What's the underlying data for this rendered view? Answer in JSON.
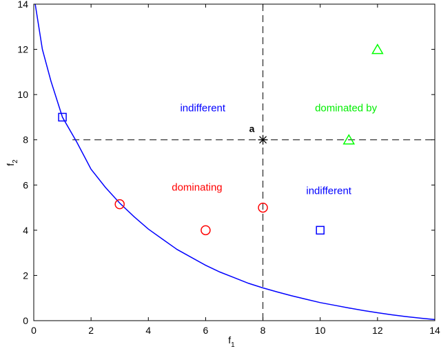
{
  "chart_data": {
    "type": "scatter",
    "xlabel": {
      "main": "f",
      "sub": "1"
    },
    "ylabel": {
      "main": "f",
      "sub": "2"
    },
    "xlim": [
      0,
      14
    ],
    "ylim": [
      0,
      14
    ],
    "xticks": [
      0,
      2,
      4,
      6,
      8,
      10,
      12,
      14
    ],
    "yticks": [
      0,
      2,
      4,
      6,
      8,
      10,
      12,
      14
    ],
    "grid": false,
    "curve": {
      "color": "#0000ff",
      "points": [
        [
          0.05,
          14
        ],
        [
          0.3,
          12.0
        ],
        [
          0.6,
          10.6
        ],
        [
          1.0,
          9.0
        ],
        [
          1.5,
          7.9
        ],
        [
          2.0,
          6.7
        ],
        [
          2.5,
          5.9
        ],
        [
          3.0,
          5.2
        ],
        [
          3.5,
          4.6
        ],
        [
          4.0,
          4.05
        ],
        [
          4.5,
          3.6
        ],
        [
          5.0,
          3.15
        ],
        [
          5.5,
          2.8
        ],
        [
          6.0,
          2.45
        ],
        [
          6.5,
          2.15
        ],
        [
          7.0,
          1.9
        ],
        [
          7.5,
          1.65
        ],
        [
          8.0,
          1.45
        ],
        [
          8.5,
          1.27
        ],
        [
          9.0,
          1.1
        ],
        [
          9.5,
          0.95
        ],
        [
          10.0,
          0.8
        ],
        [
          10.5,
          0.68
        ],
        [
          11.0,
          0.56
        ],
        [
          11.5,
          0.45
        ],
        [
          12.0,
          0.35
        ],
        [
          12.5,
          0.26
        ],
        [
          13.0,
          0.18
        ],
        [
          13.5,
          0.11
        ],
        [
          14.0,
          0.05
        ]
      ]
    },
    "reference_point": {
      "label": "a",
      "x": 8,
      "y": 8
    },
    "series": [
      {
        "marker": "square",
        "color": "#0000ff",
        "points": [
          [
            1,
            9
          ],
          [
            10,
            4
          ]
        ]
      },
      {
        "marker": "circle",
        "color": "#ff0000",
        "points": [
          [
            3,
            5.15
          ],
          [
            6,
            4
          ],
          [
            8,
            5
          ]
        ]
      },
      {
        "marker": "triangle",
        "color": "#00ff00",
        "points": [
          [
            11,
            8
          ],
          [
            12,
            12
          ]
        ]
      }
    ],
    "annotations": [
      {
        "text": "indifferent",
        "x": 5.9,
        "y": 9.25,
        "color": "#0000ff"
      },
      {
        "text": "dominated by",
        "x": 10.9,
        "y": 9.25,
        "color": "#00ee00"
      },
      {
        "text": "dominating",
        "x": 5.7,
        "y": 5.75,
        "color": "#ff0000"
      },
      {
        "text": "indifferent",
        "x": 10.3,
        "y": 5.6,
        "color": "#0000ff"
      }
    ]
  }
}
